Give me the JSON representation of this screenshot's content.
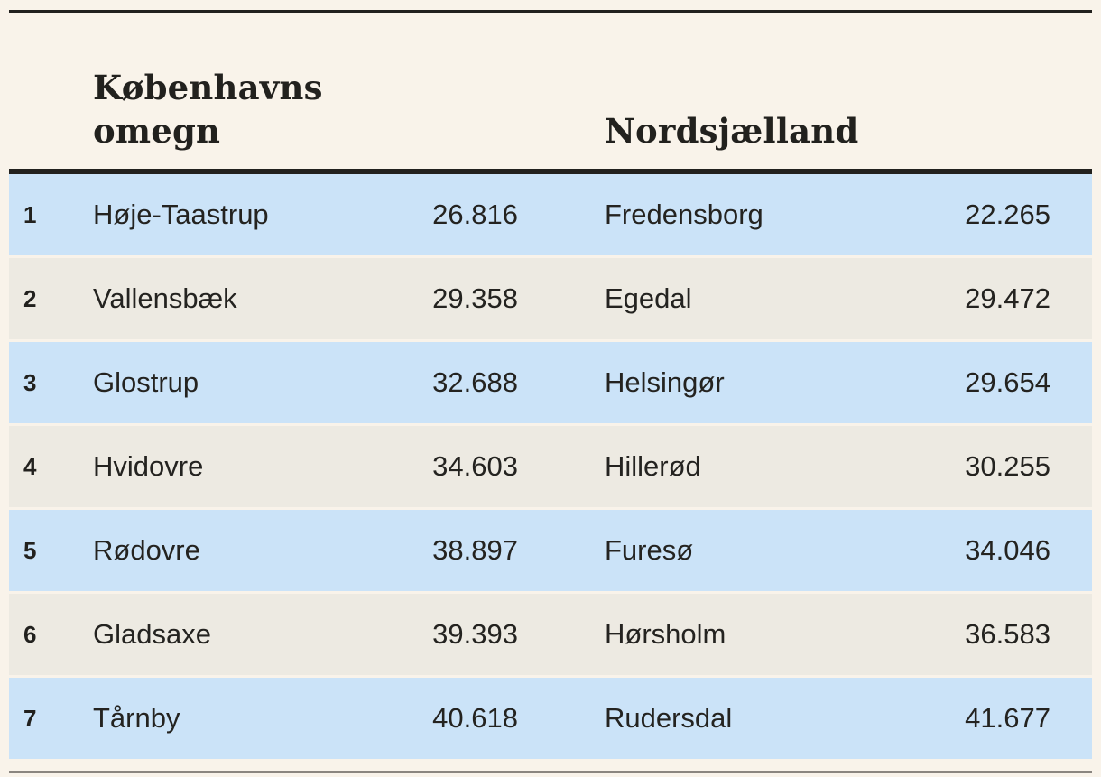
{
  "colors": {
    "page_bg": "#f9f3ea",
    "row_blue": "#cbe3f8",
    "row_sand": "#edeae2",
    "ink": "#22211e",
    "body_text": "#242320",
    "rule_gray": "#8b8680"
  },
  "header": {
    "left_region": "Københavns omegn",
    "right_region": "Nordsjælland"
  },
  "rows": [
    {
      "rank": "1",
      "l_name": "Høje-Taastrup",
      "l_value": "26.816",
      "r_name": "Fredensborg",
      "r_value": "22.265"
    },
    {
      "rank": "2",
      "l_name": "Vallensbæk",
      "l_value": "29.358",
      "r_name": "Egedal",
      "r_value": "29.472"
    },
    {
      "rank": "3",
      "l_name": "Glostrup",
      "l_value": "32.688",
      "r_name": "Helsingør",
      "r_value": "29.654"
    },
    {
      "rank": "4",
      "l_name": "Hvidovre",
      "l_value": "34.603",
      "r_name": "Hillerød",
      "r_value": "30.255"
    },
    {
      "rank": "5",
      "l_name": "Rødovre",
      "l_value": "38.897",
      "r_name": "Furesø",
      "r_value": "34.046"
    },
    {
      "rank": "6",
      "l_name": "Gladsaxe",
      "l_value": "39.393",
      "r_name": "Hørsholm",
      "r_value": "36.583"
    },
    {
      "rank": "7",
      "l_name": "Tårnby",
      "l_value": "40.618",
      "r_name": "Rudersdal",
      "r_value": "41.677"
    }
  ],
  "chart_data": {
    "type": "table",
    "title": "",
    "columns": [
      "rank",
      "municipality",
      "value"
    ],
    "number_format": "da-DK thousands separator (.)",
    "series": [
      {
        "name": "Københavns omegn",
        "rows": [
          {
            "rank": 1,
            "municipality": "Høje-Taastrup",
            "value": 26816,
            "display": "26.816"
          },
          {
            "rank": 2,
            "municipality": "Vallensbæk",
            "value": 29358,
            "display": "29.358"
          },
          {
            "rank": 3,
            "municipality": "Glostrup",
            "value": 32688,
            "display": "32.688"
          },
          {
            "rank": 4,
            "municipality": "Hvidovre",
            "value": 34603,
            "display": "34.603"
          },
          {
            "rank": 5,
            "municipality": "Rødovre",
            "value": 38897,
            "display": "38.897"
          },
          {
            "rank": 6,
            "municipality": "Gladsaxe",
            "value": 39393,
            "display": "39.393"
          },
          {
            "rank": 7,
            "municipality": "Tårnby",
            "value": 40618,
            "display": "40.618"
          }
        ]
      },
      {
        "name": "Nordsjælland",
        "rows": [
          {
            "rank": 1,
            "municipality": "Fredensborg",
            "value": 22265,
            "display": "22.265"
          },
          {
            "rank": 2,
            "municipality": "Egedal",
            "value": 29472,
            "display": "29.472"
          },
          {
            "rank": 3,
            "municipality": "Helsingør",
            "value": 29654,
            "display": "29.654"
          },
          {
            "rank": 4,
            "municipality": "Hillerød",
            "value": 30255,
            "display": "30.255"
          },
          {
            "rank": 5,
            "municipality": "Furesø",
            "value": 34046,
            "display": "34.046"
          },
          {
            "rank": 6,
            "municipality": "Hørsholm",
            "value": 36583,
            "display": "36.583"
          },
          {
            "rank": 7,
            "municipality": "Rudersdal",
            "value": 41677,
            "display": "41.677"
          }
        ]
      }
    ],
    "layout": {
      "row_striping": [
        "blue",
        "sand"
      ],
      "rules": {
        "top": "thin dark",
        "below_header": "thick dark",
        "bottom": "thin gray"
      }
    }
  }
}
